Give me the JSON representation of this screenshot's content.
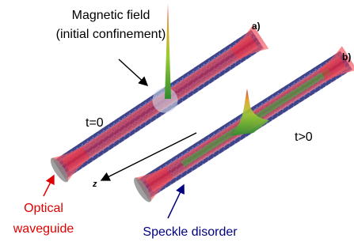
{
  "labels": {
    "field_line1": "Magnetic field",
    "field_line2": "(initial confinement)",
    "panel_a": "a)",
    "panel_b": "b)",
    "time_a": "t=0",
    "time_b": "t>0",
    "axis": "z",
    "waveguide_line1": "Optical",
    "waveguide_line2": "waveguide",
    "disorder": "Speckle disorder"
  }
}
